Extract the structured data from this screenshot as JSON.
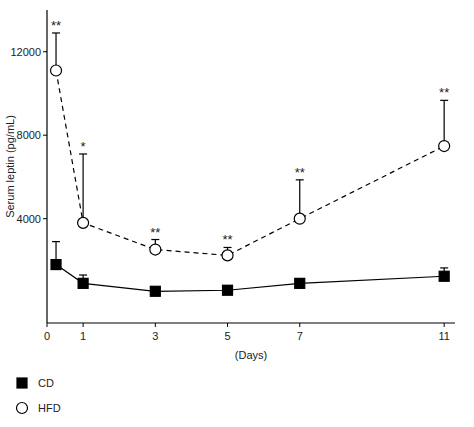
{
  "chart_data": {
    "type": "line",
    "x_label": "(Days)",
    "y_label": "Serum leptin (pg/mL)",
    "x": [
      0.25,
      1,
      3,
      5,
      7,
      11
    ],
    "series": [
      {
        "name": "CD",
        "color": "#000000",
        "marker": "filled-square",
        "line_style": "solid",
        "values": [
          1800,
          900,
          520,
          570,
          900,
          1240
        ],
        "errors": [
          1100,
          400,
          100,
          200,
          200,
          400
        ]
      },
      {
        "name": "HFD",
        "color": "#000000",
        "marker": "open-circle",
        "line_style": "dashed",
        "values": [
          11100,
          3800,
          2520,
          2240,
          4000,
          7480
        ],
        "errors": [
          1800,
          3300,
          480,
          380,
          1860,
          2190
        ]
      }
    ],
    "annotations": [
      "**",
      "*",
      "**",
      "**",
      "**",
      "**"
    ],
    "xlim": [
      0,
      11.3
    ],
    "ylim": [
      -1000,
      14000
    ],
    "xticks": [
      0,
      1,
      3,
      5,
      7,
      11
    ],
    "yticks": [
      4000,
      8000,
      12000
    ],
    "grid": false,
    "legend": "bottom-left"
  }
}
